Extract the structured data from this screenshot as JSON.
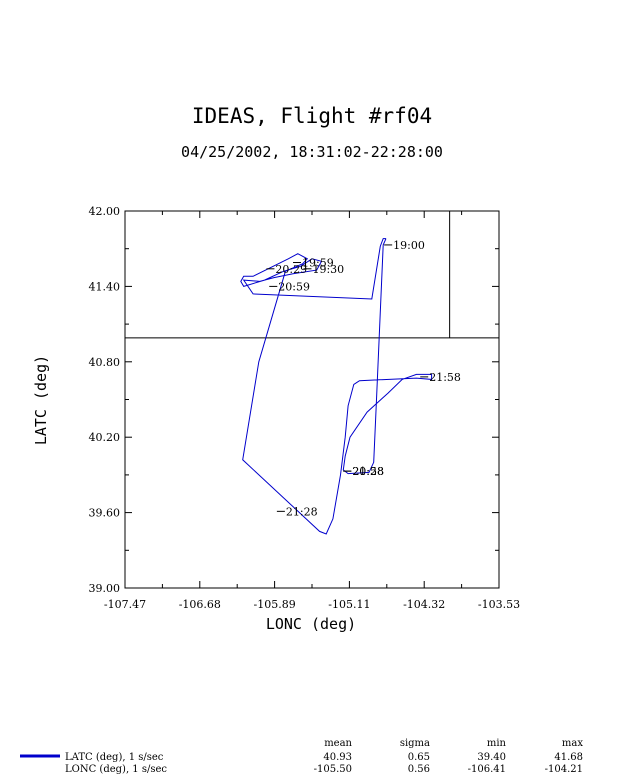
{
  "page": {
    "title": "IDEAS, Flight #rf04",
    "subtitle": "04/25/2002, 18:31:02-22:28:00"
  },
  "chart_data": {
    "type": "line",
    "title": "IDEAS, Flight #rf04",
    "subtitle": "04/25/2002, 18:31:02-22:28:00",
    "xlabel": "LONC (deg)",
    "ylabel": "LATC (deg)",
    "xlim": [
      -107.47,
      -103.53
    ],
    "ylim": [
      39.0,
      42.0
    ],
    "x_tick_labels": [
      "-107.47",
      "-106.68",
      "-105.89",
      "-105.11",
      "-104.32",
      "-103.53"
    ],
    "y_tick_labels": [
      "39.00",
      "39.60",
      "40.20",
      "40.80",
      "41.40",
      "42.00"
    ],
    "grid": false,
    "reference_lines": {
      "lat": 40.99,
      "lon": -104.05
    },
    "series": [
      {
        "name": "LATC (deg), 1 s/sec",
        "color": "#0000cc",
        "points": [
          [
            -104.72,
            41.78
          ],
          [
            -104.75,
            41.73
          ],
          [
            -104.82,
            40.5
          ],
          [
            -104.85,
            40.0
          ],
          [
            -104.9,
            39.92
          ],
          [
            -105.12,
            39.91
          ],
          [
            -105.17,
            39.94
          ],
          [
            -105.15,
            40.05
          ],
          [
            -105.1,
            40.2
          ],
          [
            -104.92,
            40.4
          ],
          [
            -104.7,
            40.55
          ],
          [
            -104.55,
            40.66
          ],
          [
            -104.4,
            40.7
          ],
          [
            -104.24,
            40.7
          ],
          [
            -104.24,
            40.66
          ],
          [
            -104.4,
            40.67
          ],
          [
            -105.0,
            40.65
          ],
          [
            -105.06,
            40.62
          ],
          [
            -105.12,
            40.45
          ],
          [
            -105.15,
            40.2
          ],
          [
            -105.2,
            39.9
          ],
          [
            -105.28,
            39.55
          ],
          [
            -105.35,
            39.43
          ],
          [
            -105.42,
            39.45
          ],
          [
            -106.23,
            40.02
          ],
          [
            -106.06,
            40.8
          ],
          [
            -105.78,
            41.52
          ],
          [
            -105.6,
            41.58
          ],
          [
            -105.55,
            41.62
          ],
          [
            -105.65,
            41.66
          ],
          [
            -105.75,
            41.62
          ],
          [
            -106.12,
            41.48
          ],
          [
            -106.22,
            41.48
          ],
          [
            -106.25,
            41.44
          ],
          [
            -106.22,
            41.4
          ],
          [
            -106.0,
            41.45
          ],
          [
            -105.8,
            41.52
          ],
          [
            -105.62,
            41.56
          ],
          [
            -105.5,
            41.62
          ],
          [
            -105.4,
            41.6
          ],
          [
            -105.45,
            41.53
          ],
          [
            -105.7,
            41.5
          ],
          [
            -105.9,
            41.47
          ],
          [
            -106.05,
            41.44
          ],
          [
            -106.22,
            41.45
          ],
          [
            -106.12,
            41.34
          ],
          [
            -104.87,
            41.3
          ],
          [
            -104.78,
            41.72
          ],
          [
            -104.75,
            41.78
          ],
          [
            -104.72,
            41.78
          ]
        ]
      }
    ],
    "annotations": [
      {
        "text": "19:00",
        "lon": -104.74,
        "lat": 41.73
      },
      {
        "text": "19:30",
        "lon": -105.59,
        "lat": 41.54
      },
      {
        "text": "19:59",
        "lon": -105.7,
        "lat": 41.59
      },
      {
        "text": "20:29",
        "lon": -105.98,
        "lat": 41.54
      },
      {
        "text": "20:59",
        "lon": -105.95,
        "lat": 41.4
      },
      {
        "text": "21:28",
        "lon": -105.87,
        "lat": 39.61
      },
      {
        "text": "21:58",
        "lon": -104.36,
        "lat": 40.68
      },
      {
        "text": "20:28",
        "lon": -105.17,
        "lat": 39.93
      },
      {
        "text": "21:58",
        "lon": -105.17,
        "lat": 39.93
      }
    ]
  },
  "stats": {
    "headers": [
      "mean",
      "sigma",
      "min",
      "max"
    ],
    "rows": [
      {
        "label": "LATC (deg), 1 s/sec",
        "color": "#0000cc",
        "values": [
          "40.93",
          "0.65",
          "39.40",
          "41.68"
        ]
      },
      {
        "label": "LONC (deg), 1 s/sec",
        "color": "#000000",
        "values": [
          "-105.50",
          "0.56",
          "-106.41",
          "-104.21"
        ]
      }
    ]
  }
}
